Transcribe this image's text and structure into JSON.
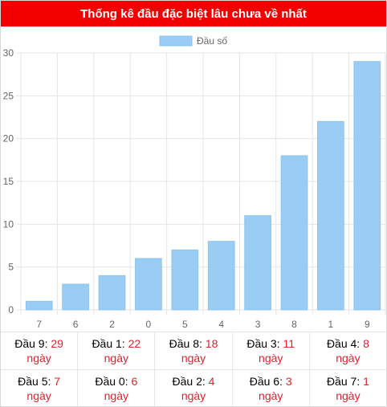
{
  "header": {
    "title": "Thống kê đầu đặc biệt lâu chưa về nhất"
  },
  "colors": {
    "header_bg": "#f20000",
    "bar": "#99cdf3",
    "bar_border": "#8cc4ee",
    "accent_red": "#e0202a"
  },
  "chart_data": {
    "type": "bar",
    "categories": [
      "7",
      "6",
      "2",
      "0",
      "5",
      "4",
      "3",
      "8",
      "1",
      "9"
    ],
    "series": [
      {
        "name": "Đầu số",
        "values": [
          1,
          3,
          4,
          6,
          7,
          8,
          11,
          18,
          22,
          29
        ]
      }
    ],
    "ylim": [
      0,
      30
    ],
    "yticks": [
      "0",
      "5",
      "10",
      "15",
      "20",
      "25",
      "30"
    ],
    "grid": true,
    "legend_position": "top"
  },
  "stats": {
    "rows": [
      [
        {
          "label": "Đầu 9: ",
          "value": "29",
          "unit": "ngày"
        },
        {
          "label": "Đầu 1: ",
          "value": "22",
          "unit": "ngày"
        },
        {
          "label": "Đầu 8: ",
          "value": "18",
          "unit": "ngày"
        },
        {
          "label": "Đầu 3: ",
          "value": "11",
          "unit": "ngày"
        },
        {
          "label": "Đầu 4: ",
          "value": "8",
          "unit": "ngày"
        }
      ],
      [
        {
          "label": "Đầu 5: ",
          "value": "7",
          "unit": "ngày"
        },
        {
          "label": "Đầu 0: ",
          "value": "6",
          "unit": "ngày"
        },
        {
          "label": "Đầu 2: ",
          "value": "4",
          "unit": "ngày"
        },
        {
          "label": "Đầu 6: ",
          "value": "3",
          "unit": "ngày"
        },
        {
          "label": "Đầu 7: ",
          "value": "1",
          "unit": "ngày"
        }
      ]
    ]
  }
}
